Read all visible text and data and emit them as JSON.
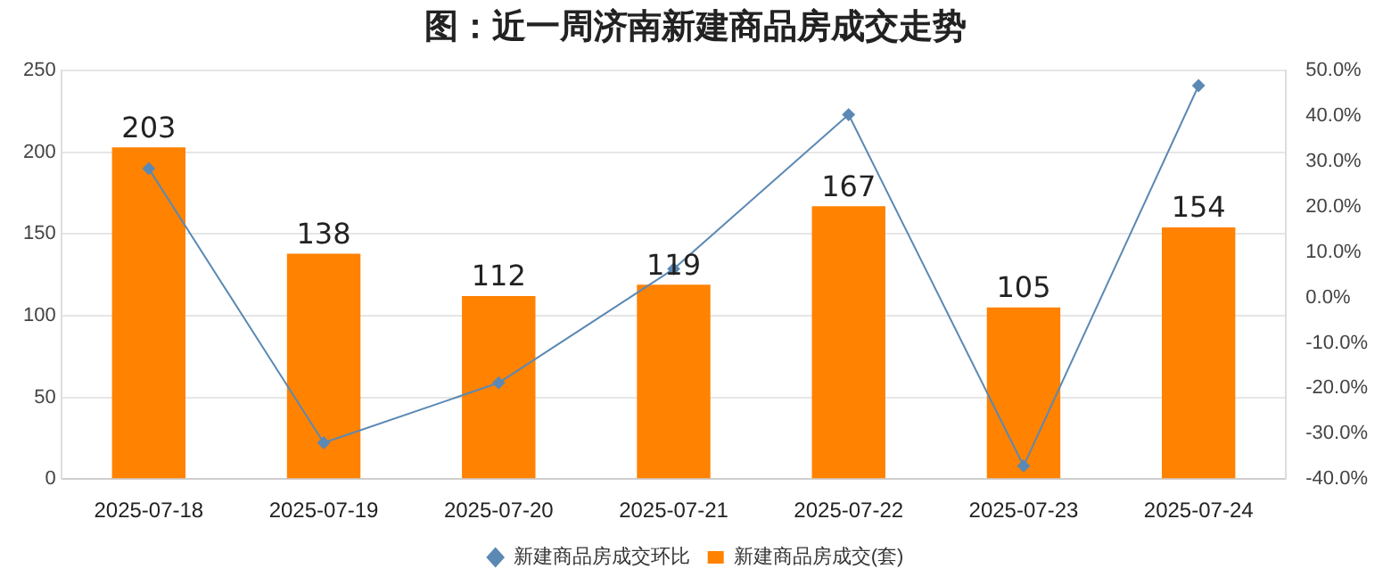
{
  "chart_data": {
    "type": "bar",
    "title": "图：近一周济南新建商品房成交走势",
    "categories": [
      "2025-07-18",
      "2025-07-19",
      "2025-07-20",
      "2025-07-21",
      "2025-07-22",
      "2025-07-23",
      "2025-07-24"
    ],
    "series": [
      {
        "name": "新建商品房成交(套)",
        "color": "#ff8200",
        "values": [
          203,
          138,
          112,
          119,
          167,
          105,
          154
        ],
        "data_labels": true
      },
      {
        "name": "新建商品房成交环比",
        "type": "line",
        "axis": "y2",
        "color": "#5b89b4",
        "marker": "diamond",
        "values": [
          28.4,
          -32.0,
          -18.8,
          6.3,
          40.3,
          -37.1,
          46.7
        ]
      }
    ],
    "ylim": [
      0,
      250
    ],
    "yticks": [
      0,
      50,
      100,
      150,
      200,
      250
    ],
    "y2lim": [
      -40,
      50
    ],
    "y2ticks": [
      {
        "value": -40,
        "label": "-40.0%"
      },
      {
        "value": -30,
        "label": "-30.0%"
      },
      {
        "value": -20,
        "label": "-20.0%"
      },
      {
        "value": -10,
        "label": "-10.0%"
      },
      {
        "value": 0,
        "label": "0.0%"
      },
      {
        "value": 10,
        "label": "10.0%"
      },
      {
        "value": 20,
        "label": "20.0%"
      },
      {
        "value": 30,
        "label": "30.0%"
      },
      {
        "value": 40,
        "label": "40.0%"
      },
      {
        "value": 50,
        "label": "50.0%"
      }
    ],
    "grid": "y",
    "legend": "bottom"
  }
}
